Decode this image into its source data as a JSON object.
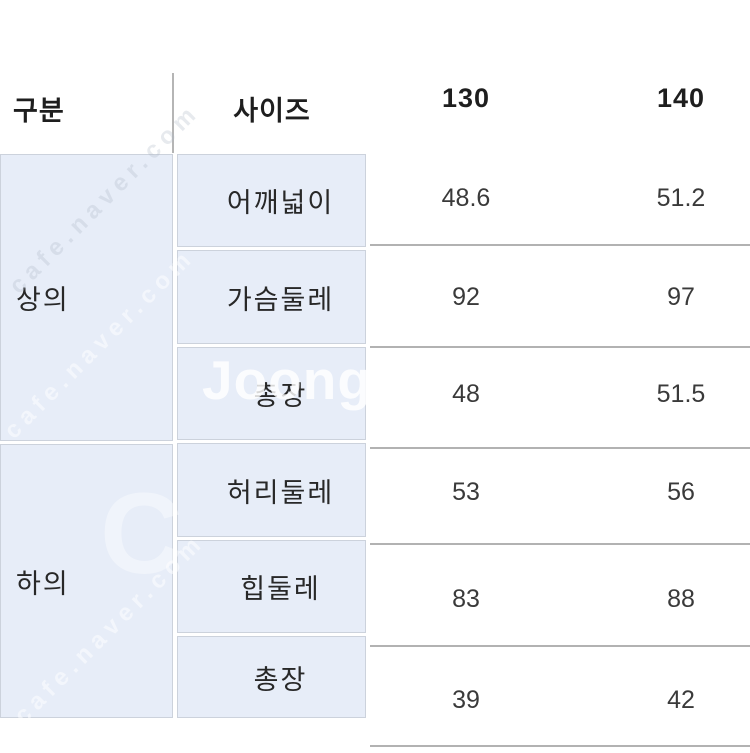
{
  "chart_data": {
    "type": "table",
    "columns": [
      "구분",
      "사이즈",
      "130",
      "140"
    ],
    "rows": [
      [
        "상의",
        "어깨넓이",
        "48.6",
        "51.2"
      ],
      [
        "상의",
        "가슴둘레",
        "92",
        "97"
      ],
      [
        "상의",
        "총장",
        "48",
        "51.5"
      ],
      [
        "하의",
        "허리둘레",
        "53",
        "56"
      ],
      [
        "하의",
        "힙둘레",
        "83",
        "88"
      ],
      [
        "하의",
        "총장",
        "39",
        "42"
      ]
    ]
  },
  "table": {
    "header": {
      "category": "구분",
      "size_label": "사이즈",
      "sizes": [
        "130",
        "140"
      ]
    },
    "groups": [
      {
        "label": "상의"
      },
      {
        "label": "하의"
      }
    ],
    "rows": [
      {
        "label": "어깨넓이",
        "values": [
          "48.6",
          "51.2"
        ]
      },
      {
        "label": "가슴둘레",
        "values": [
          "92",
          "97"
        ]
      },
      {
        "label": "총장",
        "values": [
          "48",
          "51.5"
        ]
      },
      {
        "label": "허리둘레",
        "values": [
          "53",
          "56"
        ]
      },
      {
        "label": "힙둘레",
        "values": [
          "83",
          "88"
        ]
      },
      {
        "label": "총장",
        "values": [
          "39",
          "42"
        ]
      }
    ]
  },
  "watermark": {
    "brand": "Joong",
    "diagonal": "cafe.naver.com",
    "letter": "C"
  },
  "colors": {
    "cell_blue": "#e7edf8",
    "row_line": "#b2b2b2",
    "cell_border": "#ccd2dc",
    "header_text": "#1e1e1e",
    "value_text": "#3a3a3a"
  }
}
